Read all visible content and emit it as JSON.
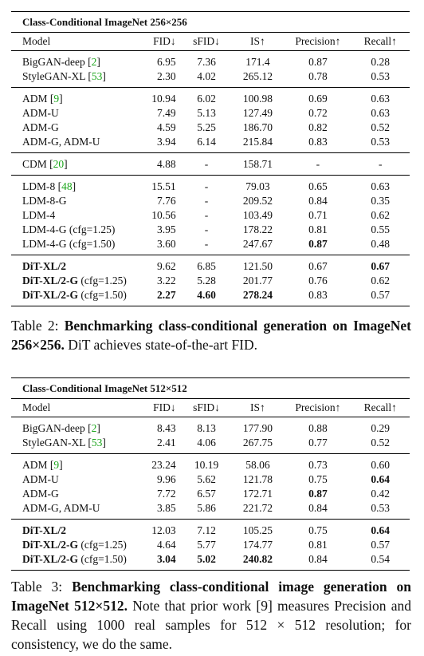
{
  "table2": {
    "title": "Class-Conditional ImageNet 256×256",
    "headers": [
      "Model",
      "FID↓",
      "sFID↓",
      "IS↑",
      "Precision↑",
      "Recall↑"
    ],
    "groups": [
      [
        {
          "model": "BigGAN-deep",
          "cite": "2",
          "fid": "6.95",
          "sfid": "7.36",
          "is": "171.4",
          "prec": "0.87",
          "rec": "0.28"
        },
        {
          "model": "StyleGAN-XL",
          "cite": "53",
          "fid": "2.30",
          "sfid": "4.02",
          "is": "265.12",
          "prec": "0.78",
          "rec": "0.53"
        }
      ],
      [
        {
          "model": "ADM",
          "cite": "9",
          "fid": "10.94",
          "sfid": "6.02",
          "is": "100.98",
          "prec": "0.69",
          "rec": "0.63"
        },
        {
          "model": "ADM-U",
          "fid": "7.49",
          "sfid": "5.13",
          "is": "127.49",
          "prec": "0.72",
          "rec": "0.63"
        },
        {
          "model": "ADM-G",
          "fid": "4.59",
          "sfid": "5.25",
          "is": "186.70",
          "prec": "0.82",
          "rec": "0.52"
        },
        {
          "model": "ADM-G, ADM-U",
          "fid": "3.94",
          "sfid": "6.14",
          "is": "215.84",
          "prec": "0.83",
          "rec": "0.53"
        }
      ],
      [
        {
          "model": "CDM",
          "cite": "20",
          "fid": "4.88",
          "sfid": "-",
          "is": "158.71",
          "prec": "-",
          "rec": "-"
        }
      ],
      [
        {
          "model": "LDM-8",
          "cite": "48",
          "fid": "15.51",
          "sfid": "-",
          "is": "79.03",
          "prec": "0.65",
          "rec": "0.63"
        },
        {
          "model": "LDM-8-G",
          "fid": "7.76",
          "sfid": "-",
          "is": "209.52",
          "prec": "0.84",
          "rec": "0.35"
        },
        {
          "model": "LDM-4",
          "fid": "10.56",
          "sfid": "-",
          "is": "103.49",
          "prec": "0.71",
          "rec": "0.62"
        },
        {
          "model": "LDM-4-G (cfg=1.25)",
          "fid": "3.95",
          "sfid": "-",
          "is": "178.22",
          "prec": "0.81",
          "rec": "0.55"
        },
        {
          "model": "LDM-4-G (cfg=1.50)",
          "fid": "3.60",
          "sfid": "-",
          "is": "247.67",
          "prec": "0.87",
          "rec": "0.48",
          "bold": [
            "prec"
          ]
        }
      ],
      [
        {
          "model": "DiT-XL/2",
          "fid": "9.62",
          "sfid": "6.85",
          "is": "121.50",
          "prec": "0.67",
          "rec": "0.67",
          "bold": [
            "rec"
          ]
        },
        {
          "model": "DiT-XL/2-G",
          "suffix": " (cfg=1.25)",
          "fid": "3.22",
          "sfid": "5.28",
          "is": "201.77",
          "prec": "0.76",
          "rec": "0.62"
        },
        {
          "model": "DiT-XL/2-G",
          "suffix": " (cfg=1.50)",
          "fid": "2.27",
          "sfid": "4.60",
          "is": "278.24",
          "prec": "0.83",
          "rec": "0.57",
          "bold": [
            "fid",
            "sfid",
            "is"
          ]
        }
      ]
    ],
    "caption": {
      "prefix": "Table 2: ",
      "bold": "Benchmarking class-conditional generation on ImageNet 256×256.",
      "rest": " DiT achieves state-of-the-art FID."
    }
  },
  "table3": {
    "title": "Class-Conditional ImageNet 512×512",
    "headers": [
      "Model",
      "FID↓",
      "sFID↓",
      "IS↑",
      "Precision↑",
      "Recall↑"
    ],
    "groups": [
      [
        {
          "model": "BigGAN-deep",
          "cite": "2",
          "fid": "8.43",
          "sfid": "8.13",
          "is": "177.90",
          "prec": "0.88",
          "rec": "0.29"
        },
        {
          "model": "StyleGAN-XL",
          "cite": "53",
          "fid": "2.41",
          "sfid": "4.06",
          "is": "267.75",
          "prec": "0.77",
          "rec": "0.52"
        }
      ],
      [
        {
          "model": "ADM",
          "cite": "9",
          "fid": "23.24",
          "sfid": "10.19",
          "is": "58.06",
          "prec": "0.73",
          "rec": "0.60"
        },
        {
          "model": "ADM-U",
          "fid": "9.96",
          "sfid": "5.62",
          "is": "121.78",
          "prec": "0.75",
          "rec": "0.64",
          "bold": [
            "rec"
          ]
        },
        {
          "model": "ADM-G",
          "fid": "7.72",
          "sfid": "6.57",
          "is": "172.71",
          "prec": "0.87",
          "rec": "0.42",
          "bold": [
            "prec"
          ]
        },
        {
          "model": "ADM-G, ADM-U",
          "fid": "3.85",
          "sfid": "5.86",
          "is": "221.72",
          "prec": "0.84",
          "rec": "0.53"
        }
      ],
      [
        {
          "model": "DiT-XL/2",
          "fid": "12.03",
          "sfid": "7.12",
          "is": "105.25",
          "prec": "0.75",
          "rec": "0.64",
          "bold": [
            "rec"
          ]
        },
        {
          "model": "DiT-XL/2-G",
          "suffix": " (cfg=1.25)",
          "fid": "4.64",
          "sfid": "5.77",
          "is": "174.77",
          "prec": "0.81",
          "rec": "0.57"
        },
        {
          "model": "DiT-XL/2-G",
          "suffix": " (cfg=1.50)",
          "fid": "3.04",
          "sfid": "5.02",
          "is": "240.82",
          "prec": "0.84",
          "rec": "0.54",
          "bold": [
            "fid",
            "sfid",
            "is"
          ]
        }
      ]
    ],
    "caption": {
      "prefix": "Table 3: ",
      "bold": "Benchmarking class-conditional image generation on ImageNet 512×512.",
      "rest": " Note that prior work [9] measures Precision and Recall using 1000 real samples for 512 × 512 resolution; for consistency, we do the same."
    }
  },
  "colors": {
    "citation": "#1aa51a",
    "text": "#111111"
  }
}
